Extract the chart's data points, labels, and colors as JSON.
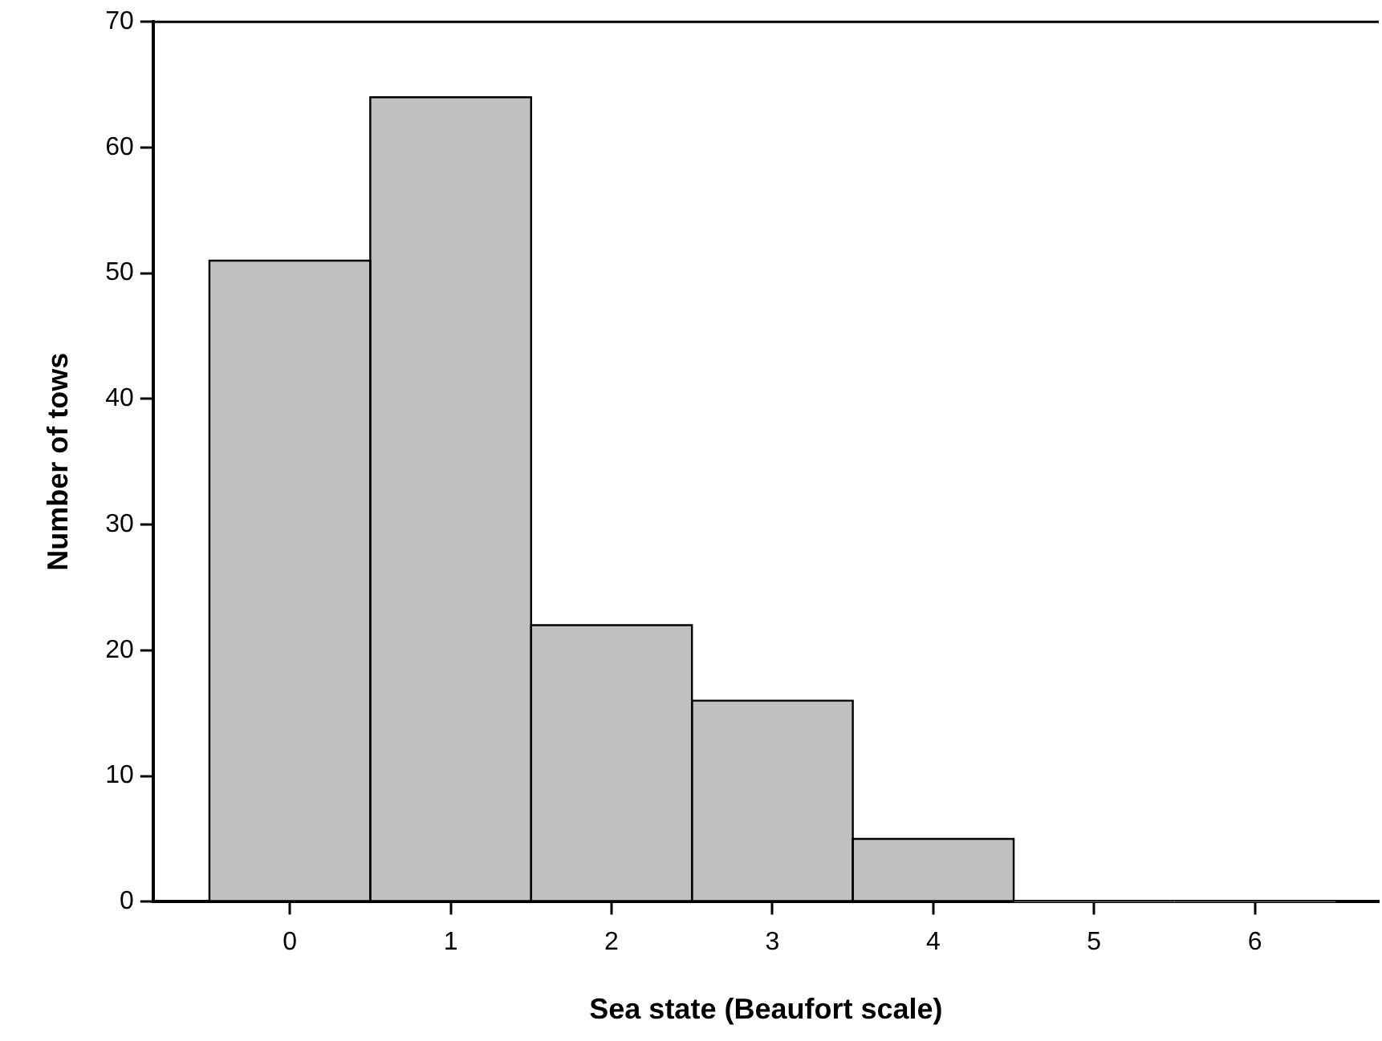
{
  "chart_data": {
    "type": "histogram",
    "xlabel": "Sea state (Beaufort scale)",
    "ylabel": "Number of tows",
    "bins": [
      -0.5,
      0.5,
      1.5,
      2.5,
      3.5,
      4.5,
      5.5,
      6.5
    ],
    "values": [
      51,
      64,
      22,
      16,
      5,
      0,
      0
    ],
    "color": "#c0c0c0",
    "xlim": [
      -0.85,
      6.77
    ],
    "xticks": [
      0,
      1,
      2,
      3,
      4,
      5,
      6
    ],
    "ylim": [
      0,
      70
    ],
    "yticks": [
      0,
      10,
      20,
      30,
      40,
      50,
      60,
      70
    ],
    "grid": false,
    "legend": false
  }
}
